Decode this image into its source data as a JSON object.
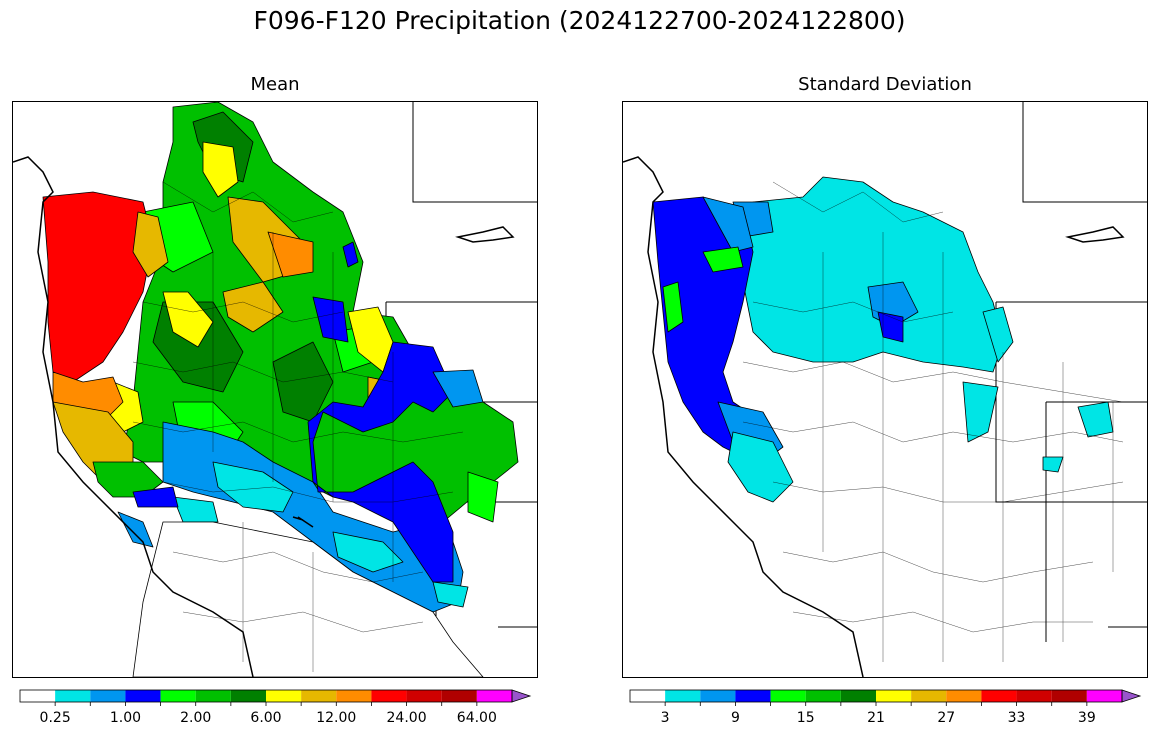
{
  "title": "F096-F120 Precipitation (2024122700-2024122800)",
  "panels": [
    {
      "id": "mean",
      "title": "Mean",
      "colorbar": {
        "colors": [
          "#ffffff",
          "#00e5e5",
          "#0096f0",
          "#0000ff",
          "#00ff00",
          "#00c000",
          "#008000",
          "#ffff00",
          "#e6b800",
          "#ff8c00",
          "#ff0000",
          "#d00000",
          "#b00000",
          "#ff00ff",
          "#9955cc"
        ],
        "tick_labels": [
          "0.25",
          "1.00",
          "2.00",
          "6.00",
          "12.00",
          "24.00",
          "64.00"
        ],
        "extend": "max"
      }
    },
    {
      "id": "std",
      "title": "Standard Deviation",
      "colorbar": {
        "colors": [
          "#ffffff",
          "#00e5e5",
          "#0096f0",
          "#0000ff",
          "#00ff00",
          "#00c000",
          "#008000",
          "#ffff00",
          "#e6b800",
          "#ff8c00",
          "#ff0000",
          "#d00000",
          "#b00000",
          "#ff00ff",
          "#9955cc"
        ],
        "tick_labels": [
          "3",
          "9",
          "15",
          "21",
          "27",
          "33",
          "39"
        ],
        "extend": "max"
      }
    }
  ]
}
